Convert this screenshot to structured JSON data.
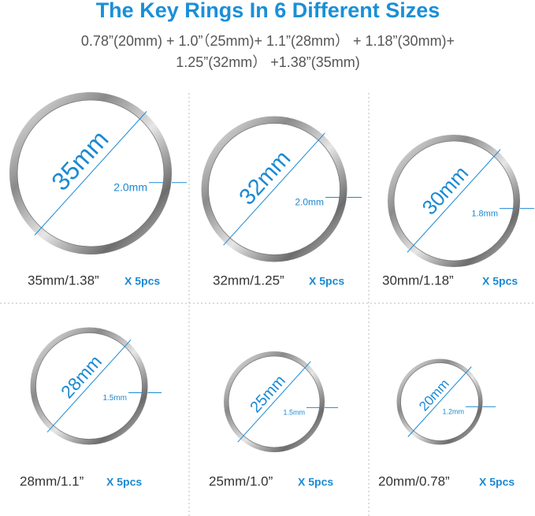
{
  "title": "The Key Rings In 6 Different Sizes",
  "subtitle": [
    "0.78”(20mm) + 1.0”（25mm)+ 1.1”(28mm） + 1.18”(30mm)+",
    "1.25”(32mm） +1.38”(35mm)"
  ],
  "rings": [
    {
      "diameter": "35mm",
      "width": "2.0mm",
      "size": "35mm/1.38”",
      "qty": "X 5pcs"
    },
    {
      "diameter": "32mm",
      "width": "2.0mm",
      "size": "32mm/1.25”",
      "qty": "X 5pcs"
    },
    {
      "diameter": "30mm",
      "width": "1.8mm",
      "size": "30mm/1.18”",
      "qty": "X 5pcs"
    },
    {
      "diameter": "28mm",
      "width": "1.5mm",
      "size": "28mm/1.1”",
      "qty": "X 5pcs"
    },
    {
      "diameter": "25mm",
      "width": "1.5mm",
      "size": "25mm/1.0”",
      "qty": "X 5pcs"
    },
    {
      "diameter": "20mm",
      "width": "1.2mm",
      "size": "20mm/0.78”",
      "qty": "X 5pcs"
    }
  ]
}
